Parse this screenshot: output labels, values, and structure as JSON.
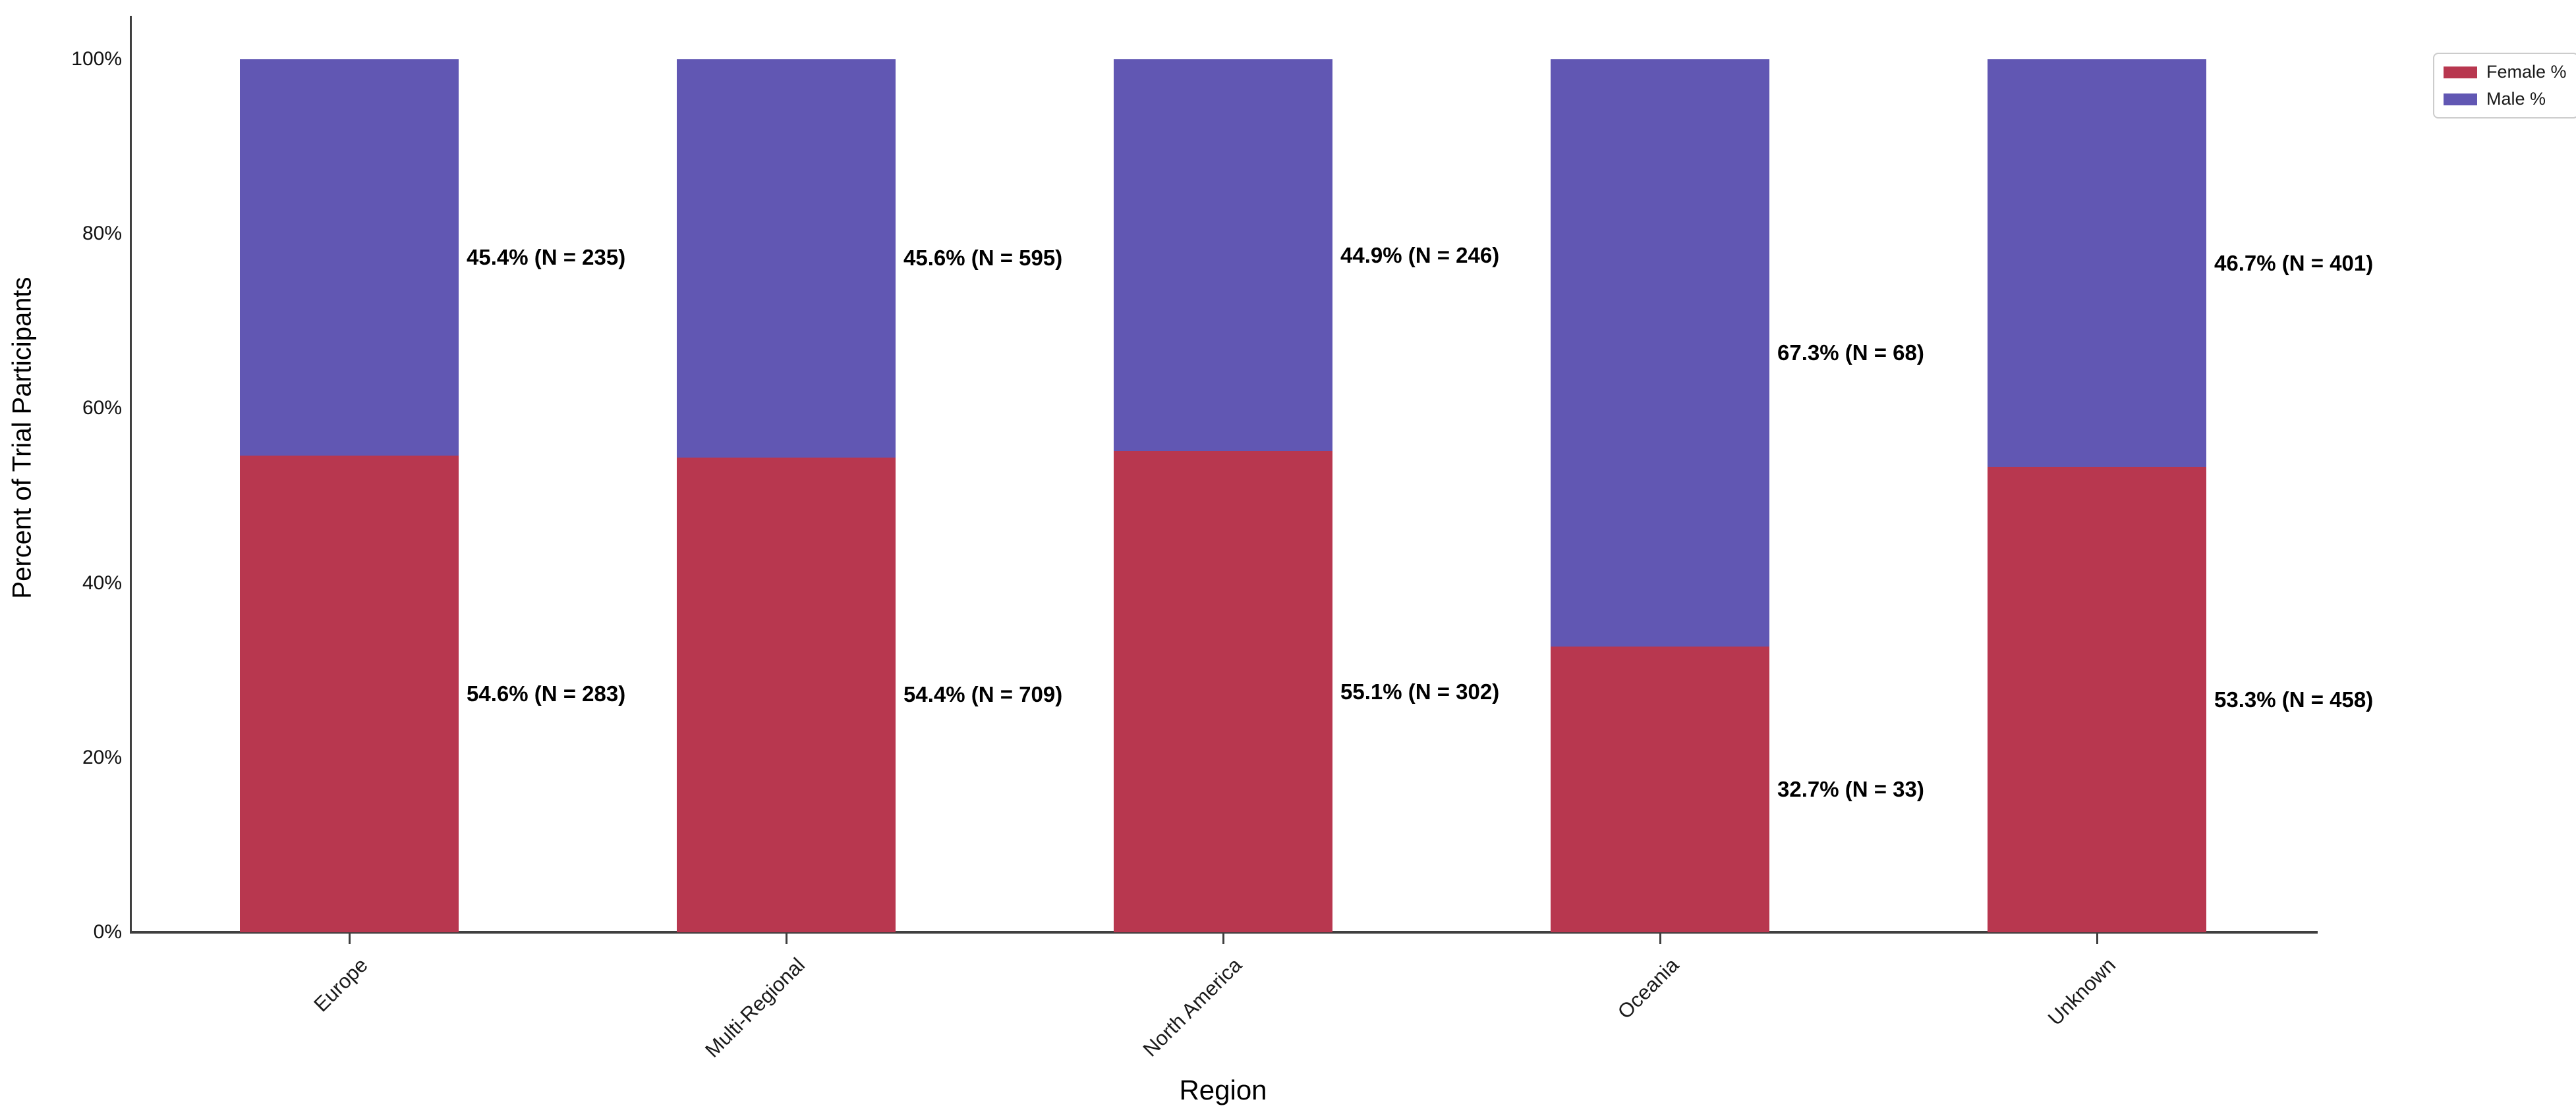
{
  "chart_data": {
    "type": "bar",
    "stacked": true,
    "normalized": "percent",
    "title": "",
    "xlabel": "Region",
    "ylabel": "Percent of Trial Participants",
    "categories": [
      "Europe",
      "Multi-Regional",
      "North America",
      "Oceania",
      "Unknown"
    ],
    "series": [
      {
        "name": "Female %",
        "color": "#b8374f",
        "position": "bottom",
        "values": [
          54.6,
          54.4,
          55.1,
          32.7,
          53.3
        ],
        "counts": [
          283,
          709,
          302,
          33,
          458
        ],
        "annotations": [
          "54.6% (N = 283)",
          "54.4% (N = 709)",
          "55.1% (N = 302)",
          "32.7% (N = 33)",
          "53.3% (N = 458)"
        ]
      },
      {
        "name": "Male %",
        "color": "#6157b3",
        "position": "top",
        "values": [
          45.4,
          45.6,
          44.9,
          67.3,
          46.7
        ],
        "counts": [
          235,
          595,
          246,
          68,
          401
        ],
        "annotations": [
          "45.4% (N = 235)",
          "45.6% (N = 595)",
          "44.9% (N = 246)",
          "67.3% (N = 68)",
          "46.7% (N = 401)"
        ]
      }
    ],
    "yticks": [
      "0%",
      "20%",
      "40%",
      "60%",
      "80%",
      "100%"
    ],
    "ytick_values": [
      0,
      20,
      40,
      60,
      80,
      100
    ],
    "ylim": [
      0,
      100
    ],
    "grid": false,
    "legend": {
      "position": "top-right",
      "entries": [
        "Female %",
        "Male %"
      ]
    }
  }
}
